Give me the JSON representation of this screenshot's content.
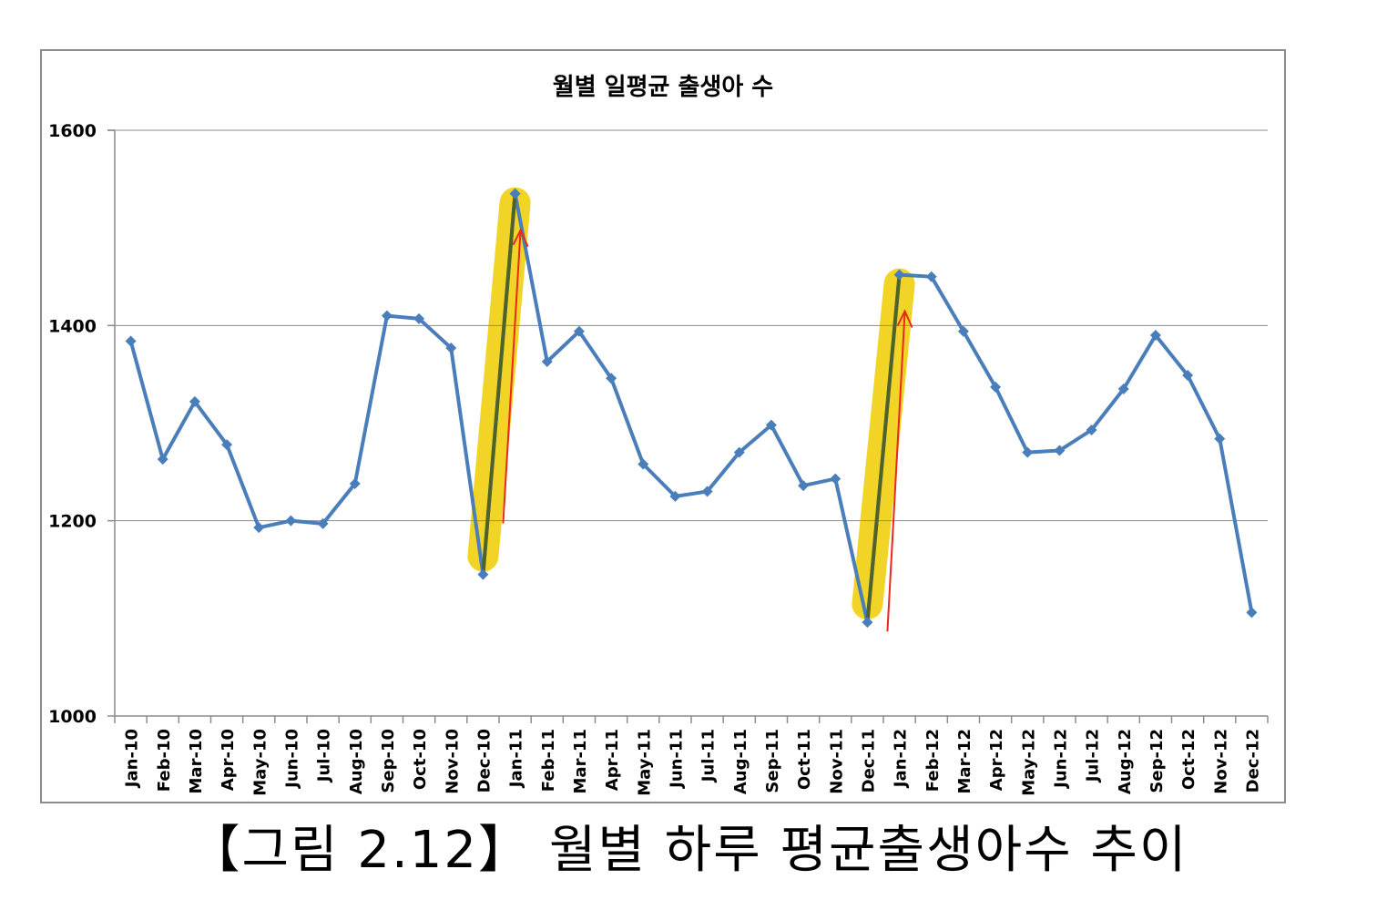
{
  "caption": "【그림 2.12】 월별 하루 평균출생아수 추이",
  "chart_data": {
    "type": "line",
    "title": "월별 일평균 출생아 수",
    "xlabel": "",
    "ylabel": "",
    "ylim": [
      1000,
      1600
    ],
    "yticks": [
      1000,
      1200,
      1400,
      1600
    ],
    "grid": true,
    "legend": "none",
    "categories": [
      "Jan-10",
      "Feb-10",
      "Mar-10",
      "Apr-10",
      "May-10",
      "Jun-10",
      "Jul-10",
      "Aug-10",
      "Sep-10",
      "Oct-10",
      "Nov-10",
      "Dec-10",
      "Jan-11",
      "Feb-11",
      "Mar-11",
      "Apr-11",
      "May-11",
      "Jun-11",
      "Jul-11",
      "Aug-11",
      "Sep-11",
      "Oct-11",
      "Nov-11",
      "Dec-11",
      "Jan-12",
      "Feb-12",
      "Mar-12",
      "Apr-12",
      "May-12",
      "Jun-12",
      "Jul-12",
      "Aug-12",
      "Sep-12",
      "Oct-12",
      "Nov-12",
      "Dec-12"
    ],
    "series": [
      {
        "values": [
          1384,
          1263,
          1322,
          1278,
          1193,
          1200,
          1197,
          1238,
          1410,
          1407,
          1377,
          1145,
          1535,
          1363,
          1394,
          1346,
          1258,
          1225,
          1230,
          1270,
          1298,
          1236,
          1243,
          1096,
          1452,
          1450,
          1394,
          1337,
          1270,
          1272,
          1293,
          1335,
          1390,
          1349,
          1284,
          1106
        ]
      }
    ],
    "highlights": [
      {
        "from": "Dec-10",
        "to": "Jan-11"
      },
      {
        "from": "Dec-11",
        "to": "Jan-12"
      }
    ],
    "colors": {
      "line": "#4a7ebb",
      "highlight": "#f2d21b",
      "highlight_segment": "#4f6228",
      "arrow": "#e8291c",
      "grid": "#8c8c8c"
    }
  }
}
